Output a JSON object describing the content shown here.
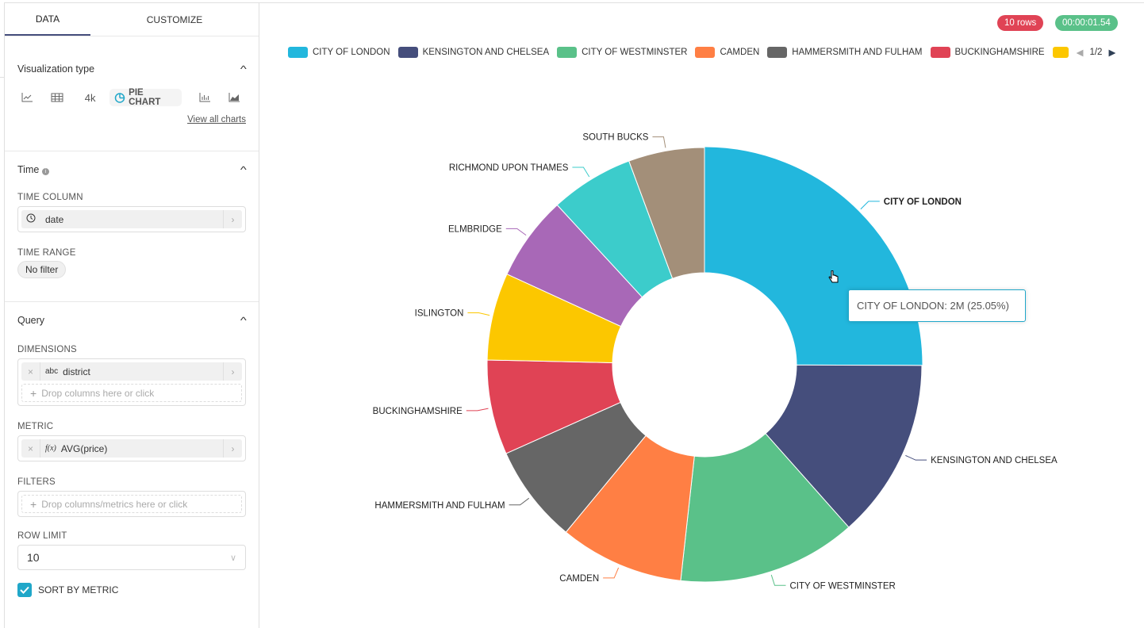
{
  "panel": {
    "tabs": [
      "DATA",
      "CUSTOMIZE"
    ],
    "viz": {
      "title": "Visualization type",
      "table_number": "4k",
      "selected": "PIE CHART",
      "view_all": "View all charts",
      "icons": [
        "line-chart-icon",
        "table-icon",
        "big-number",
        "pie-chart-icon",
        "bar-chart-icon",
        "area-chart-icon"
      ]
    },
    "time": {
      "title": "Time",
      "time_column_label": "TIME COLUMN",
      "time_column_value": "date",
      "time_range_label": "TIME RANGE",
      "time_range_value": "No filter"
    },
    "query": {
      "title": "Query",
      "dimensions_label": "DIMENSIONS",
      "dimension_type": "abc",
      "dimension_value": "district",
      "dimension_placeholder": "Drop columns here or click",
      "metric_label": "METRIC",
      "metric_type": "f(x)",
      "metric_value": "AVG(price)",
      "filters_label": "FILTERS",
      "filters_placeholder": "Drop columns/metrics here or click",
      "row_limit_label": "ROW LIMIT",
      "row_limit_value": "10",
      "sort_by_metric_label": "SORT BY METRIC",
      "sort_by_metric_checked": true
    }
  },
  "status": {
    "rows": "10 rows",
    "rows_color": "#E04355",
    "time": "00:00:01.54",
    "time_color": "#5AC189"
  },
  "legend": {
    "page": "1/2"
  },
  "tooltip": "CITY OF LONDON: 2M (25.05%)",
  "chart_data": {
    "type": "pie",
    "donut": true,
    "unit": "percent share",
    "categories": [
      "CITY OF LONDON",
      "KENSINGTON AND CHELSEA",
      "CITY OF WESTMINSTER",
      "CAMDEN",
      "HAMMERSMITH AND FULHAM",
      "BUCKINGHAMSHIRE",
      "ISLINGTON",
      "ELMBRIDGE",
      "RICHMOND UPON THAMES",
      "SOUTH BUCKS"
    ],
    "values": [
      25.05,
      13.4,
      13.3,
      9.25,
      7.3,
      7.05,
      6.5,
      6.3,
      6.2,
      5.65
    ],
    "colors": [
      "#22B7DD",
      "#454E7C",
      "#5AC189",
      "#FF7F44",
      "#666666",
      "#E04355",
      "#FCC700",
      "#A868B7",
      "#3CCCCB",
      "#A38F79"
    ],
    "legend_visible": [
      "CITY OF LONDON",
      "KENSINGTON AND CHELSEA",
      "CITY OF WESTMINSTER",
      "CAMDEN",
      "HAMMERSMITH AND FULHAM",
      "BUCKINGHAMSHIRE",
      ""
    ],
    "highlighted": "CITY OF LONDON",
    "legend_placement": "top"
  }
}
